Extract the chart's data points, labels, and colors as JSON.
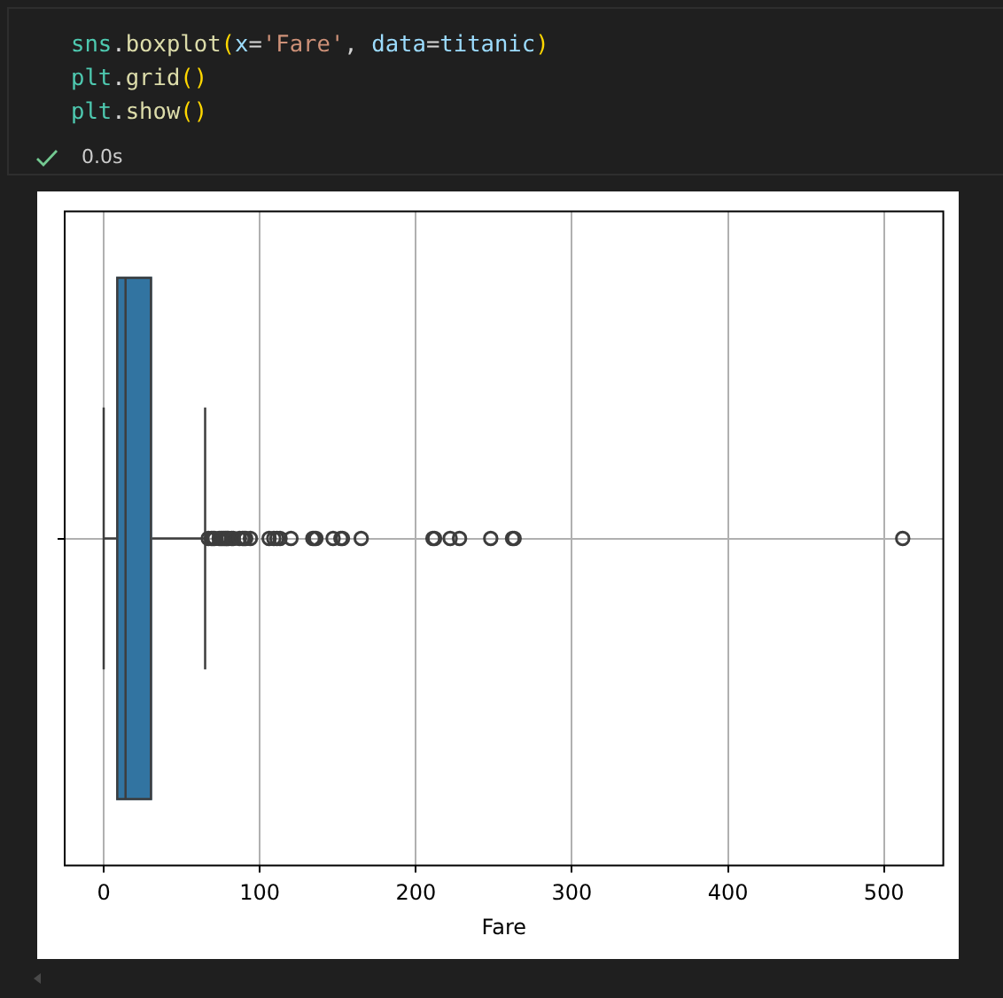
{
  "chart_data": {
    "type": "box",
    "orientation": "horizontal",
    "categories": [
      null
    ],
    "color": "#3274a1",
    "boxes": [
      {
        "low": 0,
        "q1": 8,
        "median": 14,
        "q3": 31,
        "high": 65,
        "outliers": [
          67,
          69,
          70,
          71,
          74,
          75,
          76,
          77,
          78,
          79,
          80,
          82,
          83,
          87,
          89,
          90,
          91,
          94,
          106,
          109,
          111,
          113,
          120,
          134,
          135,
          136,
          147,
          152,
          153,
          165,
          211,
          212,
          222,
          228,
          248,
          262,
          263,
          512
        ]
      }
    ],
    "xlabel": "Fare",
    "xlim": [
      -25,
      538
    ],
    "xticks": [
      0,
      100,
      200,
      300,
      400,
      500
    ],
    "grid": true,
    "annotations": [
      "sns.boxplot(x='Fare', data=titanic)",
      "plt.grid()",
      "plt.show()",
      "0.0s"
    ]
  }
}
